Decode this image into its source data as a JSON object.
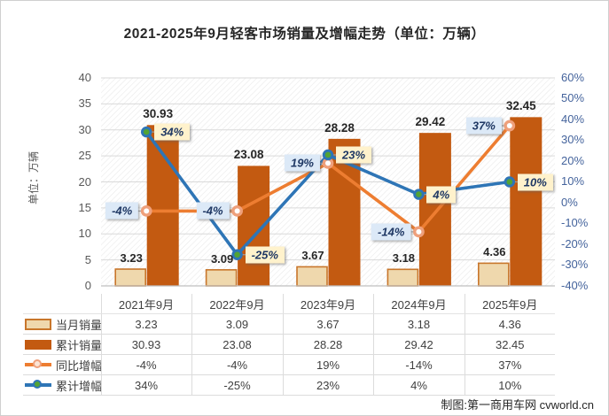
{
  "title": "2021-2025年9月轻客市场销量及增幅走势（单位：万辆）",
  "footer_credit": "制图:第一商用车网 cvworld.cn",
  "colors": {
    "bar_cumulative": "#C35A11",
    "bar_month_fill": "#EFD8AD",
    "bar_month_border": "#C8762B",
    "line_yoy": "#ED7D31",
    "line_cum": "#2E75B6",
    "marker_yoy_ring": "#EFA07B",
    "marker_yoy_center": "#FFFFFF",
    "marker_cum_ring": "#2E75B6",
    "marker_cum_center": "#53A334",
    "label_box_blue": "#DCE9F7",
    "label_box_yellow": "#FFF2CC",
    "gridline": "#D9D9D9",
    "axis_line": "#BFBFBF",
    "hatch_line": "#E9E9E9",
    "left_tick_text": "#595959",
    "right_tick_text": "#44639C"
  },
  "icons": {
    "legend_month_swatch": "tan-bordered-bar-swatch",
    "legend_cumulative_swatch": "orange-bar-swatch",
    "legend_yoy_marker": "orange-line-with-ring-marker",
    "legend_cum_growth_marker": "blue-line-with-green-dot-marker"
  },
  "chart_data": {
    "type": "combo-bar-line",
    "categories": [
      "2021年9月",
      "2022年9月",
      "2023年9月",
      "2024年9月",
      "2025年9月"
    ],
    "series": [
      {
        "name": "当月销量",
        "type": "bar",
        "axis": "left",
        "values": [
          3.23,
          3.09,
          3.67,
          3.18,
          4.36
        ],
        "labels": [
          "3.23",
          "3.09",
          "3.67",
          "3.18",
          "4.36"
        ]
      },
      {
        "name": "累计销量",
        "type": "bar",
        "axis": "left",
        "values": [
          30.93,
          23.08,
          28.28,
          29.42,
          32.45
        ],
        "labels": [
          "30.93",
          "23.08",
          "28.28",
          "29.42",
          "32.45"
        ]
      },
      {
        "name": "同比增幅",
        "type": "line",
        "axis": "right",
        "values": [
          -4,
          -4,
          19,
          -14,
          37
        ],
        "labels": [
          "-4%",
          "-4%",
          "19%",
          "-14%",
          "37%"
        ],
        "label_side": "left",
        "label_bg": "#DCE9F7"
      },
      {
        "name": "累计增幅",
        "type": "line",
        "axis": "right",
        "values": [
          34,
          -25,
          23,
          4,
          10
        ],
        "labels": [
          "34%",
          "-25%",
          "23%",
          "4%",
          "10%"
        ],
        "label_side": "right",
        "label_bg": "#FFF2CC"
      }
    ],
    "left_axis": {
      "title": "单位：万辆",
      "min": 0,
      "max": 40,
      "tick_step": 5,
      "tick_labels": [
        "0",
        "5",
        "10",
        "15",
        "20",
        "25",
        "30",
        "35",
        "40"
      ]
    },
    "right_axis": {
      "min": -40,
      "max": 60,
      "tick_step": 10,
      "tick_labels": [
        "60%",
        "50%",
        "40%",
        "30%",
        "20%",
        "10%",
        "0%",
        "-10%",
        "-20%",
        "-30%",
        "-40%"
      ]
    },
    "grid": "horizontal",
    "plot_background": "diagonal-hatch"
  },
  "table": {
    "columns": [
      "2021年9月",
      "2022年9月",
      "2023年9月",
      "2024年9月",
      "2025年9月"
    ],
    "rows": [
      {
        "name": "当月销量",
        "values": [
          "3.23",
          "3.09",
          "3.67",
          "3.18",
          "4.36"
        ]
      },
      {
        "name": "累计销量",
        "values": [
          "30.93",
          "23.08",
          "28.28",
          "29.42",
          "32.45"
        ]
      },
      {
        "name": "同比增幅",
        "values": [
          "-4%",
          "-4%",
          "19%",
          "-14%",
          "37%"
        ]
      },
      {
        "name": "累计增幅",
        "values": [
          "34%",
          "-25%",
          "23%",
          "4%",
          "10%"
        ]
      }
    ]
  }
}
